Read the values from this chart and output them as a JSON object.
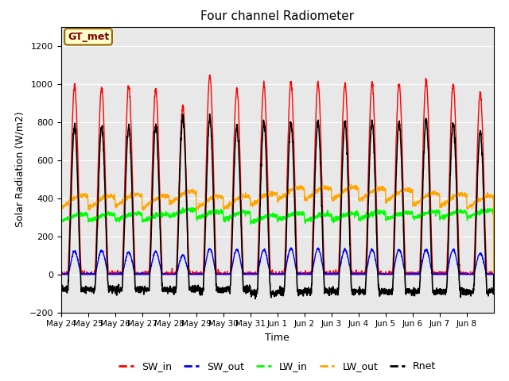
{
  "title": "Four channel Radiometer",
  "xlabel": "Time",
  "ylabel": "Solar Radiation (W/m2)",
  "ylim": [
    -200,
    1300
  ],
  "yticks": [
    -200,
    0,
    200,
    400,
    600,
    800,
    1000,
    1200
  ],
  "fig_bg_color": "#ffffff",
  "plot_bg_color": "#e8e8e8",
  "annotation_text": "GT_met",
  "annotation_bg": "#ffffcc",
  "annotation_border": "#996600",
  "num_days": 16,
  "xtick_labels": [
    "May 24",
    "May 25",
    "May 26",
    "May 27",
    "May 28",
    "May 29",
    "May 30",
    "May 31",
    "Jun 1",
    "Jun 2",
    "Jun 3",
    "Jun 4",
    "Jun 5",
    "Jun 6",
    "Jun 7",
    "Jun 8"
  ],
  "SW_in_peak": [
    990,
    980,
    990,
    970,
    880,
    1040,
    975,
    995,
    1010,
    1005,
    1000,
    1000,
    1000,
    1020,
    1000,
    950
  ],
  "SW_out_peak": [
    120,
    125,
    115,
    120,
    100,
    135,
    130,
    130,
    135,
    135,
    130,
    130,
    130,
    130,
    130,
    110
  ],
  "LW_in_mean": [
    295,
    295,
    300,
    295,
    320,
    310,
    305,
    290,
    300,
    295,
    300,
    305,
    305,
    310,
    310,
    315
  ],
  "LW_out_mean": [
    380,
    375,
    385,
    375,
    400,
    375,
    375,
    390,
    420,
    420,
    420,
    415,
    410,
    390,
    385,
    375
  ],
  "Rnet_peak": [
    780,
    775,
    775,
    780,
    820,
    820,
    775,
    800,
    795,
    800,
    795,
    800,
    800,
    810,
    800,
    750
  ],
  "Rnet_night": [
    -80,
    -80,
    -80,
    -80,
    -80,
    -80,
    -80,
    -100,
    -90,
    -90,
    -90,
    -90,
    -90,
    -90,
    -90,
    -90
  ]
}
